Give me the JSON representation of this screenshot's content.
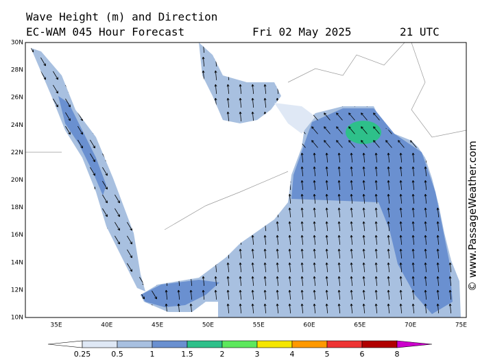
{
  "header": {
    "title": "Wave Height (m) and Direction",
    "subtitle": "EC-WAM 045 Hour Forecast",
    "date": "Fri 02 May 2025",
    "time": "21 UTC"
  },
  "map": {
    "lat_labels": [
      "30N",
      "28N",
      "26N",
      "24N",
      "22N",
      "20N",
      "18N",
      "16N",
      "14N",
      "12N",
      "10N"
    ],
    "lon_labels": [
      "35E",
      "40E",
      "45E",
      "50E",
      "55E",
      "60E",
      "65E",
      "70E",
      "75E"
    ]
  },
  "legend": {
    "labels": [
      "0.25",
      "0.5",
      "1",
      "1.5",
      "2",
      "3",
      "4",
      "5",
      "6",
      "8"
    ],
    "colors": [
      "#dfe8f5",
      "#a8c0e0",
      "#6a90d0",
      "#2ec08a",
      "#5de85d",
      "#f5e600",
      "#ff9900",
      "#ee3333",
      "#b00000",
      "#cc00cc"
    ]
  },
  "watermark": "© www.PassageWeather.com"
}
